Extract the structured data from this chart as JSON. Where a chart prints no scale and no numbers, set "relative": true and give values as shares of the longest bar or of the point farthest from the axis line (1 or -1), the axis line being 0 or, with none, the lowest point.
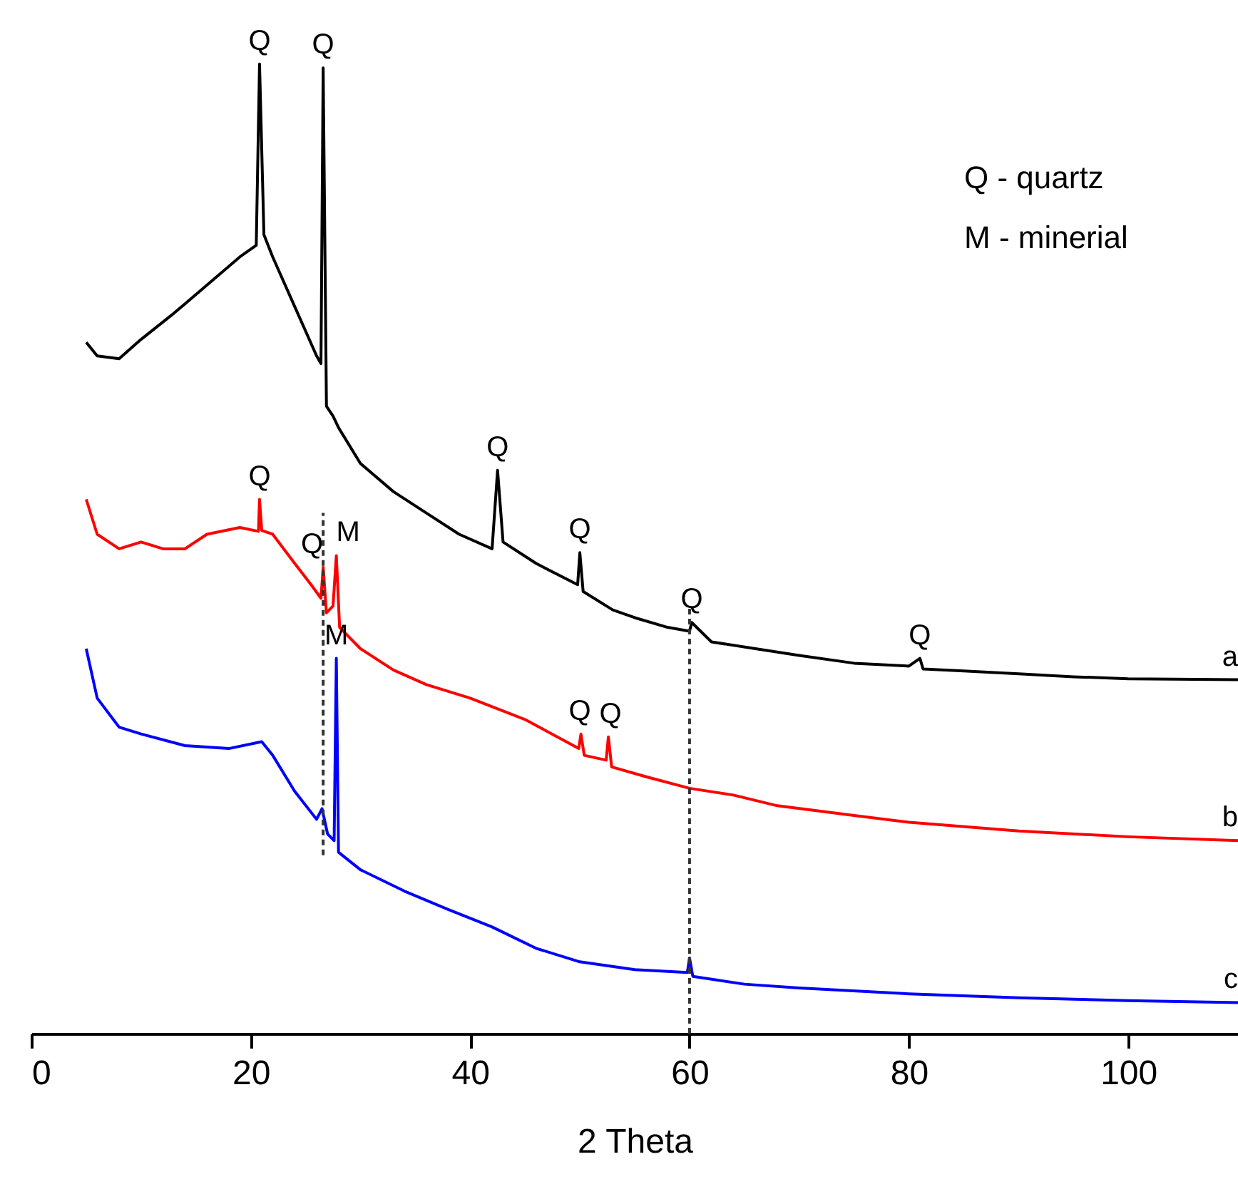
{
  "chart_data": {
    "type": "line",
    "relative": true,
    "xlabel": "2 Theta",
    "xlim": [
      0,
      110
    ],
    "xticks": [
      0,
      20,
      40,
      60,
      80,
      100
    ],
    "grid": false,
    "marker": "none",
    "line_style": "solid",
    "series": [
      {
        "color": "#000000",
        "x": [
          5,
          6,
          8,
          10,
          13,
          16,
          19,
          20.5,
          20.8,
          21.2,
          22,
          24,
          26,
          26.4,
          26.6,
          26.9,
          27.5,
          28,
          30,
          33,
          36,
          39,
          42,
          42.5,
          43,
          46,
          49.8,
          50,
          50.3,
          53,
          55,
          58,
          60,
          60.2,
          62,
          66,
          70,
          75,
          80,
          81,
          81.3,
          85,
          90,
          95,
          100,
          110
        ],
        "values": [
          0.713,
          0.699,
          0.696,
          0.716,
          0.743,
          0.772,
          0.801,
          0.813,
          1.0,
          0.824,
          0.801,
          0.75,
          0.699,
          0.691,
          0.996,
          0.647,
          0.637,
          0.625,
          0.588,
          0.559,
          0.537,
          0.515,
          0.5,
          0.581,
          0.507,
          0.485,
          0.463,
          0.496,
          0.456,
          0.437,
          0.429,
          0.419,
          0.415,
          0.424,
          0.404,
          0.397,
          0.39,
          0.382,
          0.379,
          0.387,
          0.376,
          0.374,
          0.371,
          0.368,
          0.366,
          0.365
        ]
      },
      {
        "color": "#ff0000",
        "x": [
          5,
          6,
          8,
          10,
          12,
          14,
          16,
          19,
          20.7,
          20.8,
          21,
          22,
          24,
          25.5,
          26.4,
          26.6,
          26.9,
          27.5,
          27.8,
          28.1,
          30,
          33,
          36,
          40,
          45,
          49.9,
          50.1,
          50.4,
          52.4,
          52.6,
          52.9,
          56,
          60,
          64,
          68,
          75,
          80,
          90,
          100,
          110
        ],
        "values": [
          0.551,
          0.515,
          0.5,
          0.507,
          0.5,
          0.5,
          0.515,
          0.522,
          0.518,
          0.551,
          0.519,
          0.515,
          0.485,
          0.463,
          0.449,
          0.481,
          0.434,
          0.441,
          0.493,
          0.419,
          0.397,
          0.375,
          0.36,
          0.346,
          0.324,
          0.294,
          0.309,
          0.287,
          0.282,
          0.306,
          0.275,
          0.265,
          0.253,
          0.246,
          0.235,
          0.225,
          0.218,
          0.209,
          0.203,
          0.199
        ]
      },
      {
        "color": "#0000ff",
        "x": [
          5,
          6,
          8,
          10,
          14,
          18,
          21,
          22,
          24,
          26,
          26.5,
          27,
          27.6,
          27.8,
          28,
          30,
          34,
          38,
          42,
          46,
          50,
          55,
          59.8,
          60,
          60.3,
          65,
          70,
          80,
          90,
          100,
          110
        ],
        "values": [
          0.397,
          0.346,
          0.316,
          0.309,
          0.297,
          0.294,
          0.301,
          0.287,
          0.25,
          0.221,
          0.232,
          0.206,
          0.199,
          0.387,
          0.187,
          0.169,
          0.147,
          0.128,
          0.11,
          0.088,
          0.074,
          0.066,
          0.063,
          0.078,
          0.059,
          0.051,
          0.047,
          0.041,
          0.037,
          0.034,
          0.032
        ]
      },
      {
        "color": "#333333",
        "line_style": "dashed",
        "x": [
          26.6,
          26.6
        ],
        "values": [
          0.184,
          0.537
        ]
      },
      {
        "color": "#333333",
        "line_style": "dashed",
        "x": [
          60,
          60
        ],
        "values": [
          0,
          0.441
        ]
      }
    ],
    "annotations": [
      {
        "text": "Q",
        "x": 20.8,
        "y": 1.0
      },
      {
        "text": "Q",
        "x": 26.6,
        "y": 0.996
      },
      {
        "text": "Q",
        "x": 42.5,
        "y": 0.581
      },
      {
        "text": "Q",
        "x": 50,
        "y": 0.496
      },
      {
        "text": "Q",
        "x": 60.2,
        "y": 0.424
      },
      {
        "text": "Q",
        "x": 81,
        "y": 0.387
      },
      {
        "text": "Q",
        "x": 20.8,
        "y": 0.551
      },
      {
        "text": "Q",
        "x": 26.6,
        "y": 0.481
      },
      {
        "text": "M",
        "x": 27.8,
        "y": 0.493
      },
      {
        "text": "Q",
        "x": 50,
        "y": 0.309
      },
      {
        "text": "Q",
        "x": 52.8,
        "y": 0.306
      },
      {
        "text": "M",
        "x": 27.8,
        "y": 0.387
      },
      {
        "text": "a",
        "x": 110,
        "y": 0.365
      },
      {
        "text": "b",
        "x": 110,
        "y": 0.199
      },
      {
        "text": "c",
        "x": 110,
        "y": 0.032
      },
      "Q - quartz",
      "M - minerial"
    ]
  }
}
